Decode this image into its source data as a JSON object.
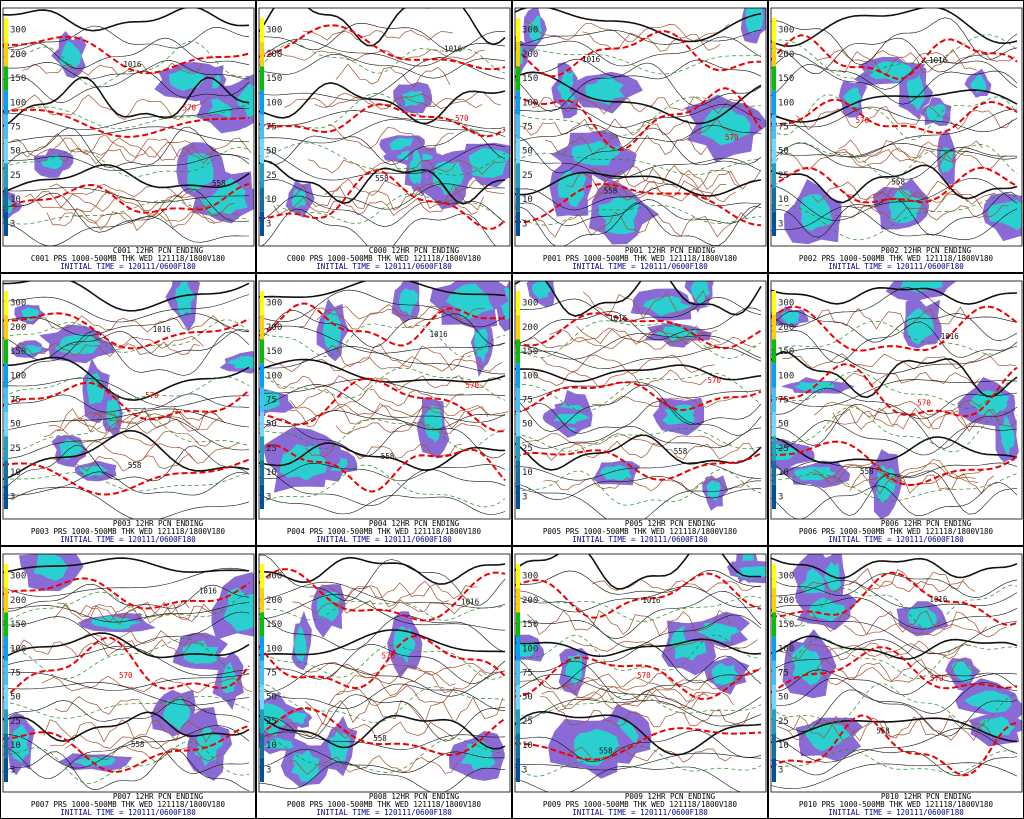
{
  "colorbar_ticks": [
    "300",
    "200",
    "150",
    "100",
    "75",
    "50",
    "25",
    "10",
    "3"
  ],
  "panels": [
    {
      "title": "C001 12HR PCN ENDING",
      "subtitle": "C001 PRS 1000-500MB THK WED 121118/1800V180",
      "initial": "INITIAL TIME = 120111/0600F180",
      "labels": [
        "1016",
        "570",
        "558"
      ]
    },
    {
      "title": "C000 12HR PCN ENDING",
      "subtitle": "C000 PRS 1000-500MB THK WED 121118/1800V180",
      "initial": "INITIAL TIME = 120111/0600F180",
      "labels": [
        "1016",
        "570",
        "558"
      ]
    },
    {
      "title": "P001 12HR PCN ENDING",
      "subtitle": "P001 PRS 1000-500MB THK WED 121118/1800V180",
      "initial": "INITIAL TIME = 120111/0600F180",
      "labels": [
        "1016",
        "570",
        "558"
      ]
    },
    {
      "title": "P002 12HR PCN ENDING",
      "subtitle": "P002 PRS 1000-500MB THK WED 121118/1800V180",
      "initial": "INITIAL TIME = 120111/0600F180",
      "labels": [
        "1016",
        "570",
        "558"
      ]
    },
    {
      "title": "P003 12HR PCN ENDING",
      "subtitle": "P003 PRS 1000-500MB THK WED 121118/1800V180",
      "initial": "INITIAL TIME = 120111/0600F180",
      "labels": [
        "1016",
        "570",
        "558"
      ]
    },
    {
      "title": "P004 12HR PCN ENDING",
      "subtitle": "P004 PRS 1000-500MB THK WED 121118/1800V180",
      "initial": "INITIAL TIME = 120111/0600F180",
      "labels": [
        "1016",
        "570",
        "558"
      ]
    },
    {
      "title": "P005 12HR PCN ENDING",
      "subtitle": "P005 PRS 1000-500MB THK WED 121118/1800V180",
      "initial": "INITIAL TIME = 120111/0600F180",
      "labels": [
        "1016",
        "570",
        "558"
      ]
    },
    {
      "title": "P006 12HR PCN ENDING",
      "subtitle": "P006 PRS 1000-500MB THK WED 121118/1800V180",
      "initial": "INITIAL TIME = 120111/0600F180",
      "labels": [
        "1016",
        "570",
        "558"
      ]
    },
    {
      "title": "P007 12HR PCN ENDING",
      "subtitle": "P007 PRS 1000-500MB THK WED 121118/1800V180",
      "initial": "INITIAL TIME = 120111/0600F180",
      "labels": [
        "1016",
        "570",
        "558"
      ]
    },
    {
      "title": "P008 12HR PCN ENDING",
      "subtitle": "P008 PRS 1000-500MB THK WED 121118/1800V180",
      "initial": "INITIAL TIME = 120111/0600F180",
      "labels": [
        "1016",
        "570",
        "558"
      ]
    },
    {
      "title": "P009 12HR PCN ENDING",
      "subtitle": "P009 PRS 1000-500MB THK WED 121118/1800V180",
      "initial": "INITIAL TIME = 120111/0600F180",
      "labels": [
        "1016",
        "570",
        "558"
      ]
    },
    {
      "title": "P010 12HR PCN ENDING",
      "subtitle": "P010 PRS 1000-500MB THK WED 121118/1800V180",
      "initial": "INITIAL TIME = 120111/0600F180",
      "labels": [
        "1016",
        "570",
        "558"
      ]
    }
  ]
}
